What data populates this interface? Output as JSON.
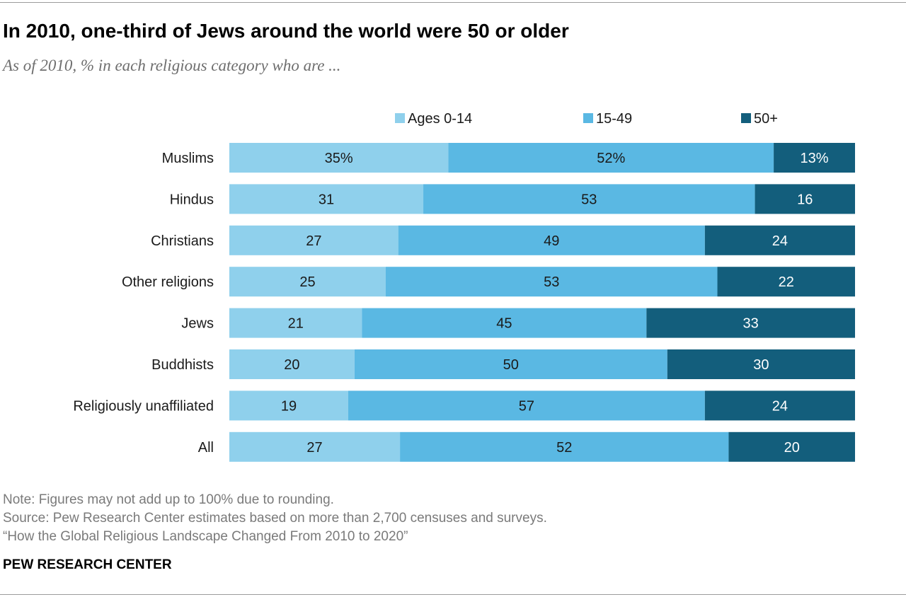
{
  "title": "In 2010, one-third of Jews around the world were 50 or older",
  "subtitle": "As of 2010, % in each religious category who are ...",
  "notes": {
    "note": "Note: Figures may not add up to 100% due to rounding.",
    "source": "Source: Pew Research Center estimates based on more than 2,700 censuses and surveys.",
    "report": "“How the Global Religious Landscape Changed From 2010 to 2020”"
  },
  "brand": "PEW RESEARCH CENTER",
  "chart_data": {
    "type": "bar",
    "orientation": "horizontal",
    "stacked": true,
    "categories": [
      "Muslims",
      "Hindus",
      "Christians",
      "Other religions",
      "Jews",
      "Buddhists",
      "Religiously unaffiliated",
      "All"
    ],
    "series": [
      {
        "name": "Ages 0-14",
        "color": "#8fd0ec",
        "values": [
          35,
          31,
          27,
          25,
          21,
          20,
          19,
          27
        ],
        "labels": [
          "35%",
          "31",
          "27",
          "25",
          "21",
          "20",
          "19",
          "27"
        ]
      },
      {
        "name": "15-49",
        "color": "#5ab8e3",
        "values": [
          52,
          53,
          49,
          53,
          45,
          50,
          57,
          52
        ],
        "labels": [
          "52%",
          "53",
          "49",
          "53",
          "45",
          "50",
          "57",
          "52"
        ]
      },
      {
        "name": "50+",
        "color": "#135e7c",
        "values": [
          13,
          16,
          24,
          22,
          33,
          30,
          24,
          20
        ],
        "labels": [
          "13%",
          "16",
          "24",
          "22",
          "33",
          "30",
          "24",
          "20"
        ]
      }
    ],
    "legend_position": "top",
    "grid": false
  }
}
